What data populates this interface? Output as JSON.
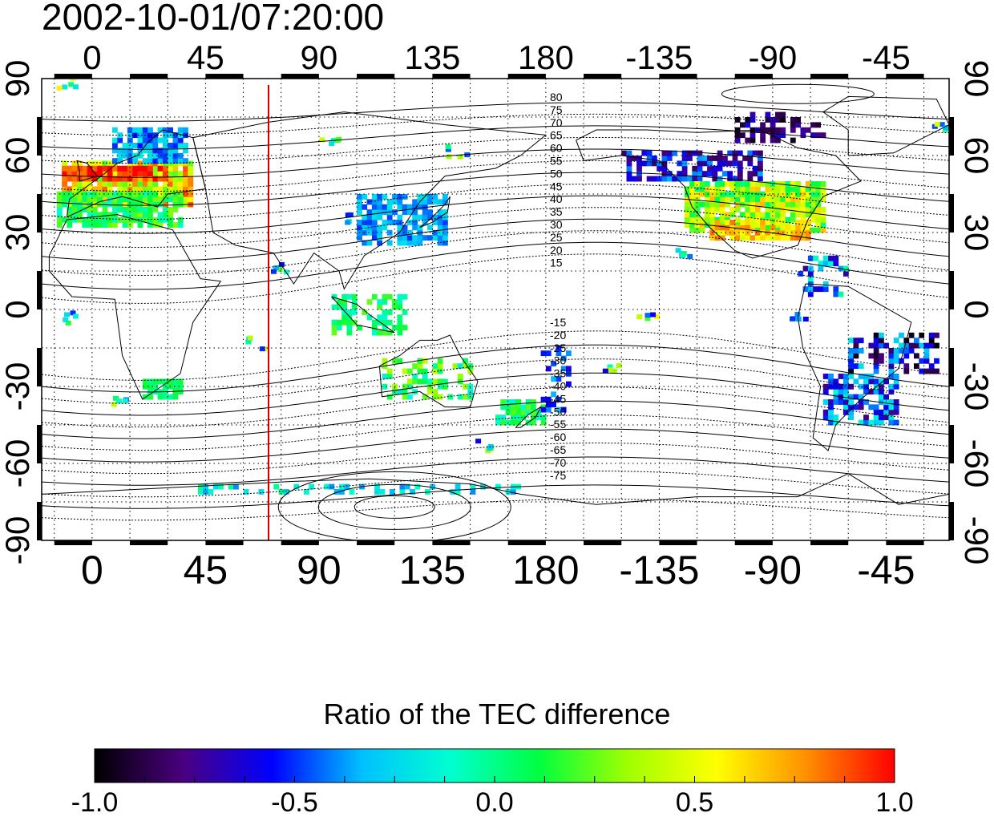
{
  "map_data": {
    "title": "2002-10-01/07:20:00",
    "lon_ticks": [
      "0",
      "45",
      "90",
      "135",
      "180",
      "-135",
      "-90",
      "-45"
    ],
    "lon_ticks_deg": [
      0,
      45,
      90,
      135,
      180,
      225,
      270,
      315
    ],
    "lat_ticks": [
      "90",
      "60",
      "30",
      "0",
      "-30",
      "-60",
      "-90"
    ],
    "lat_ticks_deg": [
      90,
      60,
      30,
      0,
      -30,
      -60,
      -90
    ],
    "lon_range": [
      -20,
      340
    ],
    "lat_range": [
      -90,
      90
    ],
    "terminator_longitude": 70,
    "contour_labels_north": [
      "80",
      "75",
      "70",
      "65",
      "60",
      "55",
      "50",
      "45",
      "40",
      "35",
      "30",
      "25",
      "20",
      "15"
    ],
    "contour_labels_south": [
      "-15",
      "-20",
      "-25",
      "-30",
      "-35",
      "-40",
      "-45",
      "-50",
      "-55",
      "-60",
      "-65",
      "-70",
      "-75"
    ],
    "colorbar": {
      "title": "Ratio of the TEC difference",
      "labels": [
        "-1.0",
        "-0.5",
        "0.0",
        "0.5",
        "1.0"
      ],
      "range": [
        -1.0,
        1.0
      ],
      "colors": [
        "#000000",
        "#4a0080",
        "#0000ff",
        "#00c0ff",
        "#00ffd0",
        "#00ff40",
        "#a0ff00",
        "#ffff00",
        "#ff9000",
        "#ff0000"
      ]
    },
    "colors": {
      "terminator": "#cc0000",
      "frame": "#000000",
      "grid": "#000000"
    }
  }
}
